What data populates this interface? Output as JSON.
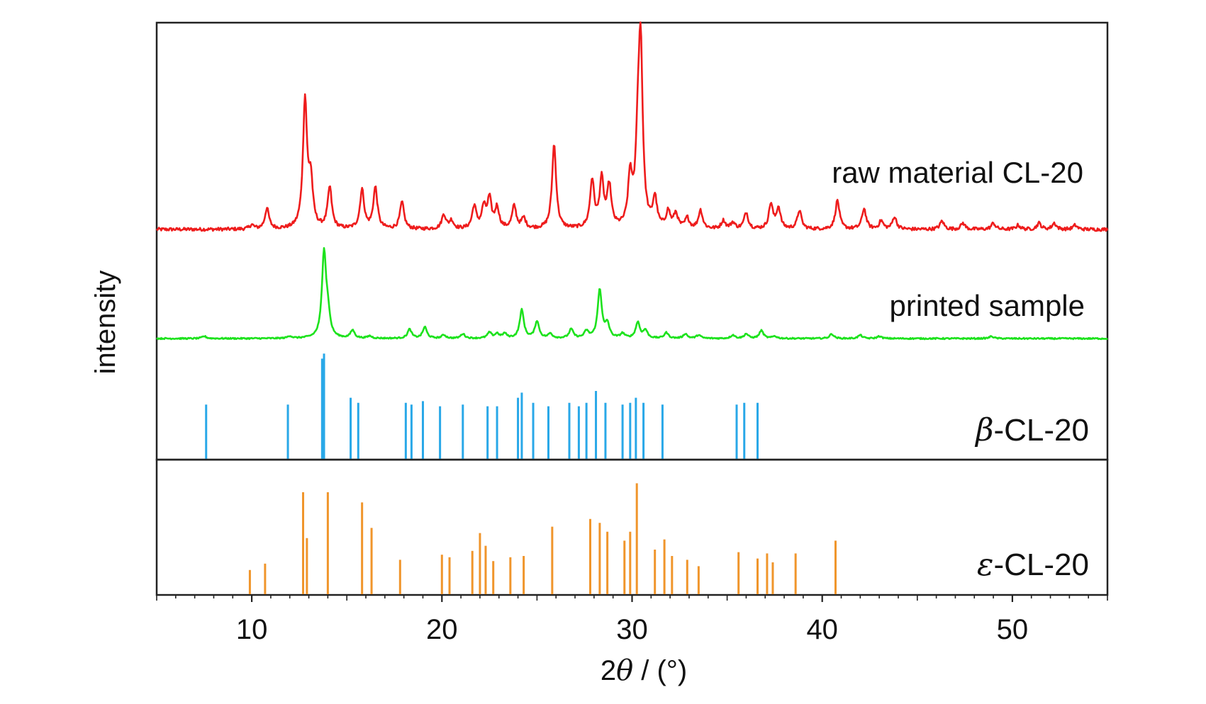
{
  "chart_data": {
    "type": "line",
    "xlabel_prefix": "2",
    "xlabel_symbol": "θ",
    "xlabel_suffix": " / (°)",
    "ylabel": "intensity",
    "xlim": [
      5,
      55
    ],
    "xticks": [
      10,
      20,
      30,
      40,
      50
    ],
    "grid": false,
    "legend": "none",
    "upper_panel": {
      "series": [
        {
          "name": "raw material CL-20",
          "kind": "xrd_pattern",
          "color": "#ee1c1c",
          "baseline": 0.03,
          "noise": 0.008,
          "peaks": [
            [
              10.0,
              0.02
            ],
            [
              10.8,
              0.1
            ],
            [
              12.8,
              0.62
            ],
            [
              13.1,
              0.22
            ],
            [
              14.1,
              0.2
            ],
            [
              15.8,
              0.19
            ],
            [
              16.5,
              0.2
            ],
            [
              17.9,
              0.13
            ],
            [
              20.1,
              0.07
            ],
            [
              20.5,
              0.04
            ],
            [
              21.7,
              0.11
            ],
            [
              22.2,
              0.1
            ],
            [
              22.5,
              0.14
            ],
            [
              22.9,
              0.1
            ],
            [
              23.8,
              0.11
            ],
            [
              24.3,
              0.05
            ],
            [
              25.9,
              0.41
            ],
            [
              27.9,
              0.23
            ],
            [
              28.4,
              0.23
            ],
            [
              28.8,
              0.2
            ],
            [
              29.9,
              0.24
            ],
            [
              30.3,
              0.32
            ],
            [
              30.45,
              0.85
            ],
            [
              31.2,
              0.14
            ],
            [
              31.9,
              0.08
            ],
            [
              32.3,
              0.07
            ],
            [
              32.9,
              0.05
            ],
            [
              33.6,
              0.09
            ],
            [
              34.8,
              0.04
            ],
            [
              35.3,
              0.03
            ],
            [
              36.0,
              0.08
            ],
            [
              37.3,
              0.12
            ],
            [
              37.7,
              0.1
            ],
            [
              38.8,
              0.09
            ],
            [
              40.8,
              0.14
            ],
            [
              42.2,
              0.1
            ],
            [
              43.1,
              0.04
            ],
            [
              43.8,
              0.06
            ],
            [
              46.3,
              0.04
            ],
            [
              47.4,
              0.03
            ],
            [
              49.0,
              0.03
            ],
            [
              50.3,
              0.02
            ],
            [
              51.4,
              0.03
            ],
            [
              52.2,
              0.03
            ],
            [
              53.3,
              0.02
            ]
          ]
        },
        {
          "name": "printed sample",
          "kind": "xrd_pattern",
          "color": "#1de21d",
          "baseline": 0.03,
          "noise": 0.006,
          "peaks": [
            [
              7.5,
              0.02
            ],
            [
              12.0,
              0.02
            ],
            [
              13.8,
              0.75
            ],
            [
              14.0,
              0.18
            ],
            [
              15.3,
              0.07
            ],
            [
              16.2,
              0.02
            ],
            [
              18.3,
              0.08
            ],
            [
              19.1,
              0.1
            ],
            [
              20.1,
              0.03
            ],
            [
              21.1,
              0.04
            ],
            [
              22.5,
              0.05
            ],
            [
              22.9,
              0.04
            ],
            [
              23.3,
              0.04
            ],
            [
              24.2,
              0.25
            ],
            [
              25.0,
              0.15
            ],
            [
              25.7,
              0.04
            ],
            [
              26.8,
              0.08
            ],
            [
              27.6,
              0.06
            ],
            [
              28.3,
              0.43
            ],
            [
              28.7,
              0.12
            ],
            [
              29.5,
              0.04
            ],
            [
              30.3,
              0.14
            ],
            [
              30.7,
              0.07
            ],
            [
              31.8,
              0.05
            ],
            [
              32.8,
              0.04
            ],
            [
              33.5,
              0.03
            ],
            [
              35.3,
              0.03
            ],
            [
              36.0,
              0.04
            ],
            [
              36.8,
              0.07
            ],
            [
              37.5,
              0.02
            ],
            [
              40.5,
              0.04
            ],
            [
              42.0,
              0.03
            ],
            [
              43.0,
              0.02
            ],
            [
              48.9,
              0.02
            ]
          ]
        },
        {
          "name": "β-CL-20",
          "kind": "reference_sticks",
          "color": "#29a8e8",
          "sticks": [
            [
              7.6,
              0.32
            ],
            [
              11.9,
              0.32
            ],
            [
              13.7,
              0.59
            ],
            [
              13.8,
              0.62
            ],
            [
              15.2,
              0.36
            ],
            [
              15.6,
              0.33
            ],
            [
              18.1,
              0.33
            ],
            [
              18.4,
              0.32
            ],
            [
              19.0,
              0.34
            ],
            [
              19.9,
              0.31
            ],
            [
              21.1,
              0.32
            ],
            [
              22.4,
              0.31
            ],
            [
              22.9,
              0.31
            ],
            [
              24.0,
              0.36
            ],
            [
              24.2,
              0.39
            ],
            [
              24.8,
              0.33
            ],
            [
              25.6,
              0.31
            ],
            [
              26.7,
              0.33
            ],
            [
              27.2,
              0.31
            ],
            [
              27.6,
              0.33
            ],
            [
              28.1,
              0.4
            ],
            [
              28.6,
              0.33
            ],
            [
              29.5,
              0.32
            ],
            [
              29.9,
              0.33
            ],
            [
              30.2,
              0.36
            ],
            [
              30.6,
              0.33
            ],
            [
              31.6,
              0.32
            ],
            [
              35.5,
              0.32
            ],
            [
              35.9,
              0.33
            ],
            [
              36.6,
              0.33
            ]
          ]
        }
      ],
      "labels": [
        {
          "text": "raw material CL-20"
        },
        {
          "text": "printed sample"
        },
        {
          "symbol": "β",
          "text": "-CL-20"
        }
      ]
    },
    "lower_panel": {
      "series": [
        {
          "name": "ε-CL-20",
          "kind": "reference_sticks",
          "color": "#f0952b",
          "sticks": [
            [
              9.9,
              0.19
            ],
            [
              10.7,
              0.24
            ],
            [
              12.7,
              0.8
            ],
            [
              12.9,
              0.44
            ],
            [
              14.0,
              0.8
            ],
            [
              15.8,
              0.72
            ],
            [
              16.3,
              0.52
            ],
            [
              17.8,
              0.27
            ],
            [
              20.0,
              0.31
            ],
            [
              20.4,
              0.29
            ],
            [
              21.6,
              0.34
            ],
            [
              22.0,
              0.48
            ],
            [
              22.3,
              0.38
            ],
            [
              22.7,
              0.26
            ],
            [
              23.6,
              0.29
            ],
            [
              24.3,
              0.3
            ],
            [
              25.8,
              0.53
            ],
            [
              27.8,
              0.59
            ],
            [
              28.3,
              0.56
            ],
            [
              28.7,
              0.49
            ],
            [
              29.6,
              0.42
            ],
            [
              29.9,
              0.49
            ],
            [
              30.25,
              0.87
            ],
            [
              31.2,
              0.35
            ],
            [
              31.7,
              0.43
            ],
            [
              32.1,
              0.3
            ],
            [
              32.9,
              0.27
            ],
            [
              33.5,
              0.22
            ],
            [
              35.6,
              0.33
            ],
            [
              36.6,
              0.28
            ],
            [
              37.1,
              0.32
            ],
            [
              37.4,
              0.25
            ],
            [
              38.6,
              0.32
            ],
            [
              40.7,
              0.42
            ]
          ]
        }
      ],
      "labels": [
        {
          "symbol": "ε",
          "text": "-CL-20"
        }
      ]
    }
  }
}
